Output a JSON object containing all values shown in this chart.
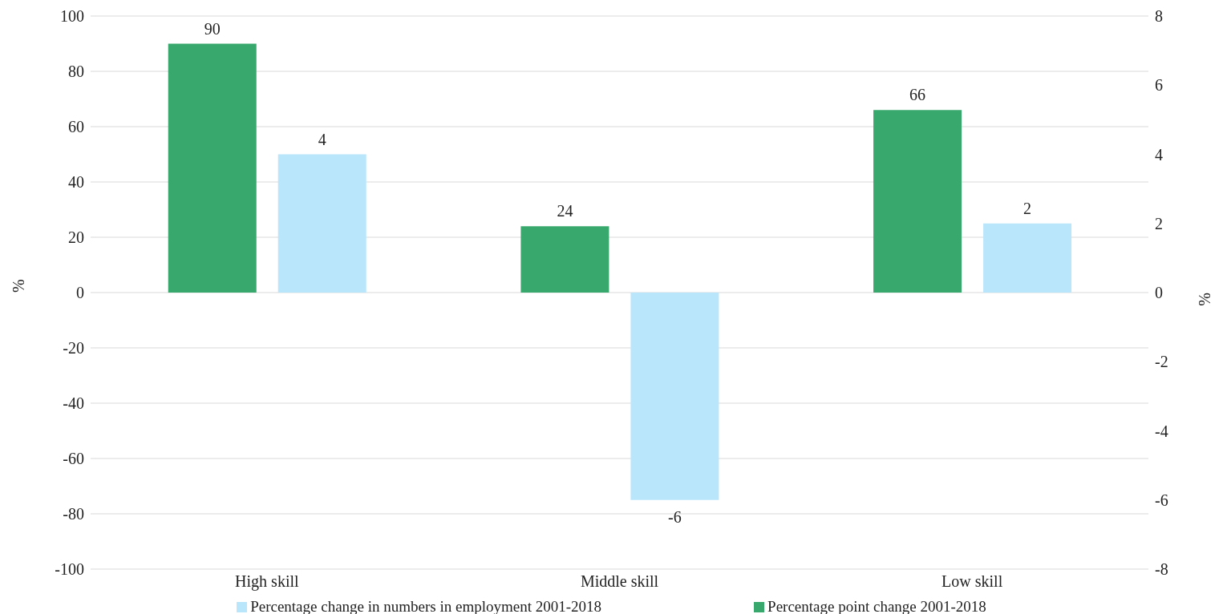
{
  "chart_data": {
    "type": "bar",
    "categories": [
      "High skill",
      "Middle skill",
      "Low skill"
    ],
    "series": [
      {
        "name": "Percentage point change 2001-2018",
        "color": "#38a86d",
        "values": [
          90,
          24,
          66
        ]
      },
      {
        "name": "Percentage change in numbers in employment 2001-2018",
        "color": "#bae6fb",
        "values": [
          4,
          -6,
          2
        ],
        "axis": "y2"
      }
    ],
    "ylabel": "%",
    "y2label": "%",
    "ylim": [
      -100,
      100
    ],
    "yticks": [
      -100,
      -80,
      -60,
      -40,
      -20,
      0,
      20,
      40,
      60,
      80,
      100
    ],
    "y2lim": [
      -8,
      8
    ],
    "y2ticks": [
      -8,
      -6,
      -4,
      -2,
      0,
      2,
      4,
      6,
      8
    ],
    "grid": "y",
    "legend": "bottom",
    "data_labels": true
  }
}
